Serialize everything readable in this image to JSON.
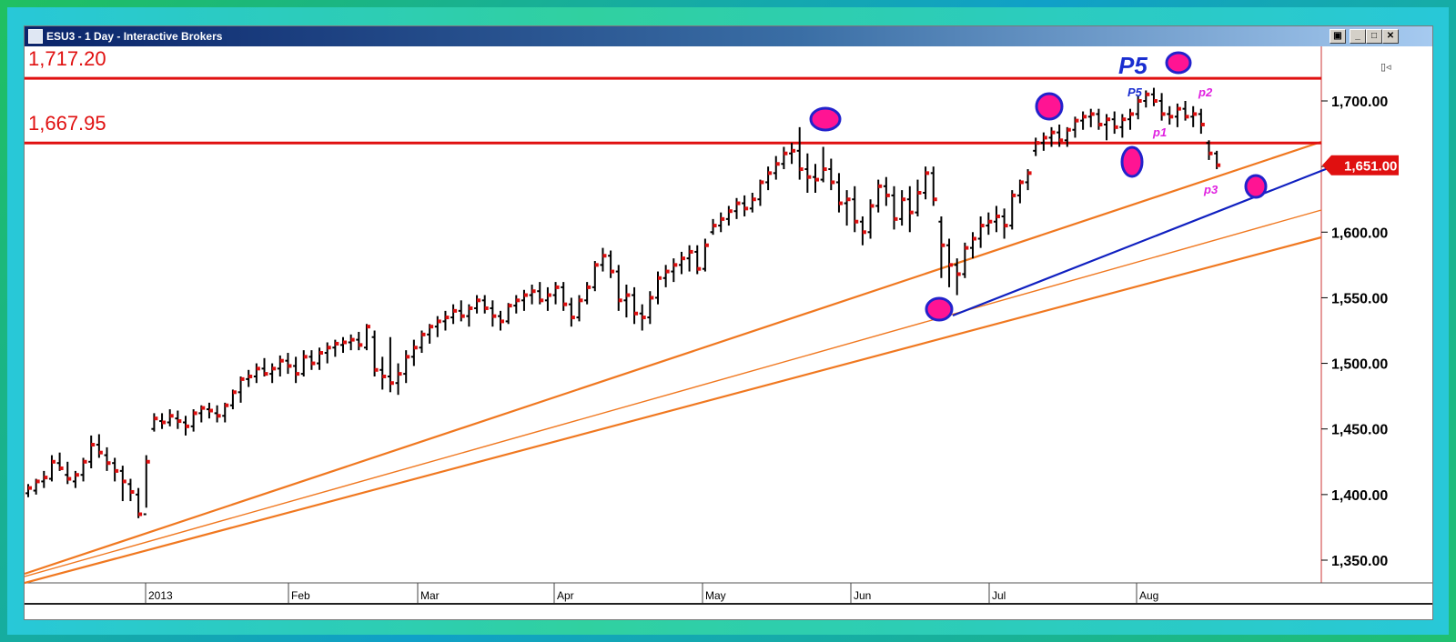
{
  "window": {
    "title": "ESU3 - 1 Day - Interactive Brokers",
    "buttons": {
      "restore_alt": "▣",
      "minimize": "_",
      "maximize": "□",
      "close": "✕"
    }
  },
  "colors": {
    "resistance": "#e01010",
    "trendline_orange": "#f07820",
    "trendline_blue": "#1020c0",
    "marker_fill": "#ff1493",
    "marker_stroke": "#2222cc",
    "bar": "#000000",
    "close_tick": "#e01010",
    "price_tag": "#e01010",
    "annotation_blue": "#1a2ed0",
    "annotation_magenta": "#e020e0"
  },
  "chart_data": {
    "type": "ohlc",
    "title": "ESU3 - 1 Day - Interactive Brokers",
    "yaxis": {
      "ticks": [
        1350,
        1400,
        1450,
        1500,
        1550,
        1600,
        1650,
        1700
      ],
      "tick_labels": [
        "1,350.00",
        "1,400.00",
        "1,450.00",
        "1,500.00",
        "1,550.00",
        "1,600.00",
        "1,650.00",
        "1,700.00"
      ],
      "position": "right"
    },
    "xaxis": {
      "labels": [
        "2013",
        "Feb",
        "Mar",
        "Apr",
        "May",
        "Jun",
        "Jul",
        "Aug"
      ]
    },
    "last_price": 1651.0,
    "last_price_label": "1,651.00",
    "horizontal_levels": [
      {
        "value": 1717.2,
        "label": "1,717.20"
      },
      {
        "value": 1667.95,
        "label": "1,667.95"
      }
    ],
    "annotations": [
      {
        "text": "P5",
        "style": "large-blue"
      },
      {
        "text": "P5",
        "style": "small-blue"
      },
      {
        "text": "p2",
        "style": "magenta"
      },
      {
        "text": "p1",
        "style": "magenta"
      },
      {
        "text": "p3",
        "style": "magenta"
      }
    ],
    "series": [
      {
        "name": "ESU3",
        "points": [
          [
            1401,
            1408,
            1398,
            1405
          ],
          [
            1403,
            1412,
            1400,
            1410
          ],
          [
            1410,
            1418,
            1405,
            1413
          ],
          [
            1412,
            1430,
            1410,
            1425
          ],
          [
            1424,
            1432,
            1418,
            1420
          ],
          [
            1415,
            1425,
            1408,
            1412
          ],
          [
            1410,
            1418,
            1405,
            1415
          ],
          [
            1415,
            1428,
            1410,
            1425
          ],
          [
            1425,
            1445,
            1420,
            1438
          ],
          [
            1438,
            1446,
            1428,
            1432
          ],
          [
            1430,
            1436,
            1418,
            1424
          ],
          [
            1424,
            1428,
            1410,
            1418
          ],
          [
            1418,
            1422,
            1395,
            1410
          ],
          [
            1408,
            1412,
            1395,
            1402
          ],
          [
            1400,
            1405,
            1382,
            1385
          ],
          [
            1385,
            1430,
            1390,
            1425
          ],
          [
            1450,
            1462,
            1448,
            1458
          ],
          [
            1456,
            1462,
            1450,
            1455
          ],
          [
            1455,
            1465,
            1452,
            1460
          ],
          [
            1458,
            1464,
            1450,
            1456
          ],
          [
            1455,
            1460,
            1445,
            1452
          ],
          [
            1452,
            1465,
            1448,
            1462
          ],
          [
            1462,
            1468,
            1455,
            1466
          ],
          [
            1465,
            1470,
            1458,
            1464
          ],
          [
            1462,
            1468,
            1455,
            1460
          ],
          [
            1460,
            1470,
            1455,
            1468
          ],
          [
            1468,
            1480,
            1465,
            1478
          ],
          [
            1478,
            1490,
            1470,
            1488
          ],
          [
            1488,
            1495,
            1482,
            1490
          ],
          [
            1490,
            1500,
            1485,
            1496
          ],
          [
            1496,
            1504,
            1490,
            1492
          ],
          [
            1492,
            1500,
            1485,
            1496
          ],
          [
            1496,
            1506,
            1490,
            1502
          ],
          [
            1502,
            1508,
            1492,
            1498
          ],
          [
            1498,
            1505,
            1485,
            1492
          ],
          [
            1492,
            1510,
            1490,
            1505
          ],
          [
            1505,
            1510,
            1495,
            1500
          ],
          [
            1500,
            1512,
            1495,
            1508
          ],
          [
            1508,
            1516,
            1500,
            1512
          ],
          [
            1512,
            1518,
            1505,
            1515
          ],
          [
            1514,
            1520,
            1508,
            1516
          ],
          [
            1516,
            1522,
            1510,
            1518
          ],
          [
            1518,
            1524,
            1510,
            1514
          ],
          [
            1512,
            1530,
            1510,
            1528
          ],
          [
            1520,
            1525,
            1490,
            1495
          ],
          [
            1495,
            1505,
            1480,
            1490
          ],
          [
            1490,
            1520,
            1478,
            1485
          ],
          [
            1485,
            1500,
            1476,
            1492
          ],
          [
            1492,
            1510,
            1485,
            1505
          ],
          [
            1505,
            1518,
            1498,
            1512
          ],
          [
            1512,
            1525,
            1508,
            1522
          ],
          [
            1522,
            1530,
            1515,
            1528
          ],
          [
            1528,
            1536,
            1520,
            1532
          ],
          [
            1532,
            1540,
            1525,
            1535
          ],
          [
            1535,
            1545,
            1530,
            1540
          ],
          [
            1540,
            1548,
            1532,
            1536
          ],
          [
            1536,
            1545,
            1528,
            1542
          ],
          [
            1542,
            1552,
            1538,
            1548
          ],
          [
            1548,
            1552,
            1538,
            1542
          ],
          [
            1542,
            1548,
            1528,
            1536
          ],
          [
            1536,
            1540,
            1525,
            1532
          ],
          [
            1532,
            1546,
            1530,
            1544
          ],
          [
            1544,
            1552,
            1538,
            1548
          ],
          [
            1548,
            1556,
            1540,
            1552
          ],
          [
            1552,
            1560,
            1545,
            1555
          ],
          [
            1555,
            1562,
            1545,
            1548
          ],
          [
            1548,
            1558,
            1540,
            1552
          ],
          [
            1552,
            1562,
            1545,
            1558
          ],
          [
            1558,
            1562,
            1540,
            1545
          ],
          [
            1545,
            1550,
            1528,
            1535
          ],
          [
            1535,
            1552,
            1532,
            1548
          ],
          [
            1548,
            1562,
            1545,
            1558
          ],
          [
            1558,
            1578,
            1555,
            1575
          ],
          [
            1575,
            1588,
            1570,
            1582
          ],
          [
            1582,
            1586,
            1565,
            1570
          ],
          [
            1570,
            1575,
            1540,
            1548
          ],
          [
            1548,
            1560,
            1535,
            1552
          ],
          [
            1552,
            1558,
            1530,
            1538
          ],
          [
            1538,
            1545,
            1525,
            1535
          ],
          [
            1535,
            1555,
            1530,
            1550
          ],
          [
            1550,
            1570,
            1545,
            1565
          ],
          [
            1565,
            1575,
            1558,
            1570
          ],
          [
            1570,
            1580,
            1562,
            1575
          ],
          [
            1575,
            1585,
            1568,
            1580
          ],
          [
            1580,
            1590,
            1570,
            1585
          ],
          [
            1585,
            1590,
            1568,
            1572
          ],
          [
            1572,
            1595,
            1570,
            1590
          ],
          [
            1600,
            1610,
            1598,
            1605
          ],
          [
            1605,
            1615,
            1600,
            1610
          ],
          [
            1610,
            1620,
            1605,
            1616
          ],
          [
            1616,
            1626,
            1610,
            1622
          ],
          [
            1622,
            1628,
            1612,
            1618
          ],
          [
            1618,
            1630,
            1615,
            1625
          ],
          [
            1625,
            1640,
            1620,
            1638
          ],
          [
            1638,
            1650,
            1632,
            1645
          ],
          [
            1645,
            1658,
            1640,
            1652
          ],
          [
            1652,
            1665,
            1648,
            1660
          ],
          [
            1660,
            1668,
            1652,
            1662
          ],
          [
            1662,
            1680,
            1640,
            1648
          ],
          [
            1648,
            1660,
            1630,
            1642
          ],
          [
            1642,
            1652,
            1630,
            1640
          ],
          [
            1640,
            1665,
            1638,
            1648
          ],
          [
            1648,
            1656,
            1632,
            1638
          ],
          [
            1638,
            1645,
            1615,
            1622
          ],
          [
            1622,
            1632,
            1605,
            1625
          ],
          [
            1625,
            1635,
            1600,
            1608
          ],
          [
            1608,
            1612,
            1590,
            1600
          ],
          [
            1600,
            1625,
            1595,
            1620
          ],
          [
            1620,
            1640,
            1615,
            1635
          ],
          [
            1635,
            1642,
            1620,
            1628
          ],
          [
            1628,
            1635,
            1602,
            1610
          ],
          [
            1610,
            1632,
            1605,
            1625
          ],
          [
            1625,
            1635,
            1600,
            1615
          ],
          [
            1615,
            1640,
            1612,
            1630
          ],
          [
            1630,
            1650,
            1625,
            1645
          ],
          [
            1645,
            1650,
            1620,
            1625
          ],
          [
            1608,
            1612,
            1565,
            1590
          ],
          [
            1590,
            1595,
            1558,
            1575
          ],
          [
            1575,
            1580,
            1552,
            1568
          ],
          [
            1568,
            1592,
            1565,
            1588
          ],
          [
            1588,
            1600,
            1580,
            1595
          ],
          [
            1595,
            1612,
            1588,
            1605
          ],
          [
            1605,
            1615,
            1598,
            1608
          ],
          [
            1608,
            1620,
            1600,
            1612
          ],
          [
            1612,
            1618,
            1595,
            1605
          ],
          [
            1605,
            1632,
            1602,
            1628
          ],
          [
            1628,
            1640,
            1622,
            1638
          ],
          [
            1638,
            1648,
            1632,
            1645
          ],
          [
            1662,
            1672,
            1658,
            1668
          ],
          [
            1668,
            1676,
            1662,
            1672
          ],
          [
            1672,
            1680,
            1665,
            1676
          ],
          [
            1676,
            1682,
            1665,
            1670
          ],
          [
            1670,
            1680,
            1665,
            1678
          ],
          [
            1678,
            1688,
            1672,
            1685
          ],
          [
            1685,
            1692,
            1678,
            1688
          ],
          [
            1688,
            1694,
            1680,
            1690
          ],
          [
            1690,
            1694,
            1678,
            1682
          ],
          [
            1682,
            1690,
            1670,
            1686
          ],
          [
            1686,
            1692,
            1675,
            1680
          ],
          [
            1680,
            1690,
            1672,
            1686
          ],
          [
            1686,
            1694,
            1678,
            1690
          ],
          [
            1690,
            1704,
            1686,
            1700
          ],
          [
            1700,
            1708,
            1695,
            1705
          ],
          [
            1705,
            1710,
            1696,
            1700
          ],
          [
            1700,
            1706,
            1685,
            1690
          ],
          [
            1690,
            1696,
            1682,
            1688
          ],
          [
            1688,
            1698,
            1680,
            1694
          ],
          [
            1694,
            1700,
            1685,
            1688
          ],
          [
            1688,
            1696,
            1680,
            1690
          ],
          [
            1690,
            1694,
            1675,
            1682
          ],
          [
            1668,
            1670,
            1655,
            1660
          ],
          [
            1660,
            1662,
            1648,
            1651
          ]
        ]
      }
    ]
  }
}
